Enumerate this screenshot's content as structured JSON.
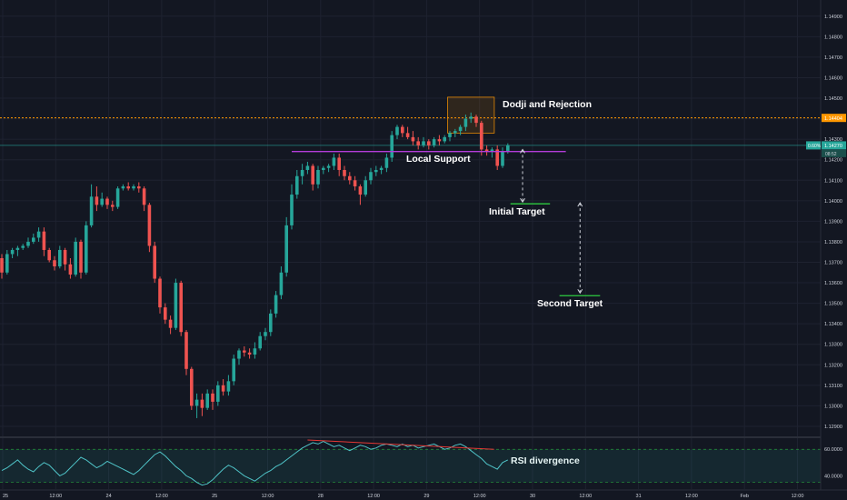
{
  "chart_data": {
    "type": "candlestick",
    "instrument_pane": {
      "y_ticks": [
        "1.14900",
        "1.14800",
        "1.14700",
        "1.14600",
        "1.14500",
        "1.14400",
        "1.14300",
        "1.14200",
        "1.14100",
        "1.14000",
        "1.13900",
        "1.13800",
        "1.13700",
        "1.13600",
        "1.13500",
        "1.13400",
        "1.13300",
        "1.13200",
        "1.13100",
        "1.13000",
        "1.12900"
      ],
      "ylim": [
        1.1286,
        1.1497
      ],
      "price_tags": [
        {
          "label": "1.14404",
          "value": 1.14404,
          "color": "#ff9800"
        },
        {
          "label": "1.14270",
          "value": 1.1427,
          "color": "#26a69a",
          "pct": "0.60%",
          "timer": "08:52"
        }
      ],
      "horizontal_lines": [
        {
          "name": "resistance",
          "value": 1.14404,
          "color": "#ff9800",
          "style": "dotted"
        },
        {
          "name": "last-price",
          "value": 1.1427,
          "color": "#26a69a",
          "style": "solid"
        }
      ],
      "candles": [
        [
          1.1372,
          1.1374,
          1.1362,
          1.1365
        ],
        [
          1.1365,
          1.1376,
          1.1364,
          1.1374
        ],
        [
          1.1374,
          1.1377,
          1.1372,
          1.1376
        ],
        [
          1.1376,
          1.1378,
          1.1373,
          1.1377
        ],
        [
          1.1377,
          1.1379,
          1.1376,
          1.1378
        ],
        [
          1.1378,
          1.1382,
          1.1377,
          1.138
        ],
        [
          1.138,
          1.1384,
          1.1379,
          1.1382
        ],
        [
          1.1382,
          1.1387,
          1.138,
          1.1385
        ],
        [
          1.1385,
          1.1387,
          1.1373,
          1.1376
        ],
        [
          1.1376,
          1.1377,
          1.137,
          1.1371
        ],
        [
          1.1371,
          1.1373,
          1.1366,
          1.1368
        ],
        [
          1.1368,
          1.1378,
          1.1367,
          1.1376
        ],
        [
          1.1376,
          1.1377,
          1.1366,
          1.1369
        ],
        [
          1.1369,
          1.1372,
          1.1362,
          1.1364
        ],
        [
          1.1364,
          1.1382,
          1.1363,
          1.138
        ],
        [
          1.138,
          1.1381,
          1.1362,
          1.1365
        ],
        [
          1.1365,
          1.139,
          1.1364,
          1.1388
        ],
        [
          1.1388,
          1.1408,
          1.1387,
          1.1402
        ],
        [
          1.1402,
          1.1407,
          1.1395,
          1.1398
        ],
        [
          1.1398,
          1.1404,
          1.1397,
          1.1401
        ],
        [
          1.1401,
          1.1402,
          1.1396,
          1.1398
        ],
        [
          1.1398,
          1.14,
          1.1395,
          1.1397
        ],
        [
          1.1397,
          1.1407,
          1.1396,
          1.1406
        ],
        [
          1.1406,
          1.1408,
          1.1405,
          1.1407
        ],
        [
          1.1407,
          1.1409,
          1.1405,
          1.1406
        ],
        [
          1.1406,
          1.1408,
          1.1405,
          1.1407
        ],
        [
          1.1407,
          1.1409,
          1.1404,
          1.1406
        ],
        [
          1.1406,
          1.1407,
          1.1395,
          1.1398
        ],
        [
          1.1398,
          1.1399,
          1.1375,
          1.1378
        ],
        [
          1.1378,
          1.138,
          1.136,
          1.1362
        ],
        [
          1.1362,
          1.1363,
          1.1345,
          1.1348
        ],
        [
          1.1348,
          1.135,
          1.134,
          1.1342
        ],
        [
          1.1342,
          1.1344,
          1.1335,
          1.1338
        ],
        [
          1.1338,
          1.1362,
          1.1337,
          1.136
        ],
        [
          1.136,
          1.1361,
          1.1334,
          1.1336
        ],
        [
          1.1336,
          1.1337,
          1.1315,
          1.1318
        ],
        [
          1.1318,
          1.1319,
          1.1298,
          1.13
        ],
        [
          1.13,
          1.1306,
          1.1294,
          1.1303
        ],
        [
          1.1303,
          1.1306,
          1.1295,
          1.1299
        ],
        [
          1.1299,
          1.1308,
          1.1298,
          1.1306
        ],
        [
          1.1306,
          1.1308,
          1.1298,
          1.1302
        ],
        [
          1.1302,
          1.1312,
          1.13,
          1.131
        ],
        [
          1.131,
          1.1313,
          1.1305,
          1.1307
        ],
        [
          1.1307,
          1.1315,
          1.1305,
          1.1312
        ],
        [
          1.1312,
          1.1325,
          1.131,
          1.1323
        ],
        [
          1.1323,
          1.1328,
          1.132,
          1.1327
        ],
        [
          1.1327,
          1.1329,
          1.1324,
          1.1326
        ],
        [
          1.1326,
          1.1328,
          1.1323,
          1.1325
        ],
        [
          1.1325,
          1.1331,
          1.1323,
          1.1328
        ],
        [
          1.1328,
          1.1336,
          1.1327,
          1.1334
        ],
        [
          1.1334,
          1.1338,
          1.1332,
          1.1336
        ],
        [
          1.1336,
          1.1347,
          1.1334,
          1.1345
        ],
        [
          1.1345,
          1.1356,
          1.1343,
          1.1354
        ],
        [
          1.1354,
          1.1368,
          1.1352,
          1.1365
        ],
        [
          1.1365,
          1.1392,
          1.1363,
          1.1388
        ],
        [
          1.1388,
          1.1408,
          1.1386,
          1.1403
        ],
        [
          1.1403,
          1.1415,
          1.1401,
          1.1412
        ],
        [
          1.1412,
          1.1418,
          1.1408,
          1.1415
        ],
        [
          1.1415,
          1.1419,
          1.1413,
          1.1417
        ],
        [
          1.1417,
          1.1418,
          1.1405,
          1.1408
        ],
        [
          1.1408,
          1.1417,
          1.1406,
          1.1415
        ],
        [
          1.1415,
          1.1417,
          1.1413,
          1.1416
        ],
        [
          1.1416,
          1.1418,
          1.1414,
          1.1417
        ],
        [
          1.1417,
          1.1423,
          1.1415,
          1.1421
        ],
        [
          1.1421,
          1.1423,
          1.1412,
          1.1415
        ],
        [
          1.1415,
          1.1417,
          1.141,
          1.1412
        ],
        [
          1.1412,
          1.1414,
          1.1408,
          1.141
        ],
        [
          1.141,
          1.1412,
          1.1405,
          1.1407
        ],
        [
          1.1407,
          1.1408,
          1.1398,
          1.1403
        ],
        [
          1.1403,
          1.1412,
          1.1402,
          1.141
        ],
        [
          1.141,
          1.1416,
          1.1408,
          1.1414
        ],
        [
          1.1414,
          1.1417,
          1.1412,
          1.1415
        ],
        [
          1.1415,
          1.1417,
          1.1413,
          1.1416
        ],
        [
          1.1416,
          1.1423,
          1.1414,
          1.1421
        ],
        [
          1.1421,
          1.1434,
          1.1419,
          1.1432
        ],
        [
          1.1432,
          1.1437,
          1.143,
          1.1436
        ],
        [
          1.1436,
          1.1437,
          1.1431,
          1.1433
        ],
        [
          1.1433,
          1.1436,
          1.143,
          1.1431
        ],
        [
          1.1431,
          1.1434,
          1.1427,
          1.1429
        ],
        [
          1.1429,
          1.1431,
          1.1425,
          1.1427
        ],
        [
          1.1427,
          1.1431,
          1.1426,
          1.1429
        ],
        [
          1.1429,
          1.143,
          1.1425,
          1.1427
        ],
        [
          1.1427,
          1.1431,
          1.1426,
          1.143
        ],
        [
          1.143,
          1.1432,
          1.1427,
          1.1429
        ],
        [
          1.1429,
          1.1432,
          1.1428,
          1.1431
        ],
        [
          1.1431,
          1.1434,
          1.1429,
          1.1433
        ],
        [
          1.1433,
          1.1435,
          1.1431,
          1.1434
        ],
        [
          1.1434,
          1.1437,
          1.1432,
          1.1436
        ],
        [
          1.1436,
          1.1442,
          1.1434,
          1.144
        ],
        [
          1.144,
          1.1443,
          1.1438,
          1.1441
        ],
        [
          1.1441,
          1.1442,
          1.1436,
          1.1438
        ],
        [
          1.1438,
          1.1439,
          1.1422,
          1.1425
        ],
        [
          1.1425,
          1.1427,
          1.1422,
          1.1424
        ],
        [
          1.1424,
          1.1426,
          1.1421,
          1.1425
        ],
        [
          1.1425,
          1.1427,
          1.1415,
          1.1417
        ],
        [
          1.1417,
          1.1426,
          1.1416,
          1.1424
        ],
        [
          1.1424,
          1.1428,
          1.1423,
          1.1427
        ]
      ]
    },
    "rsi_pane": {
      "y_ticks": [
        "60.0000",
        "40.0000"
      ],
      "ylim": [
        30,
        67
      ],
      "band": [
        35,
        60
      ],
      "values": [
        44,
        46,
        49,
        52,
        48,
        45,
        43,
        47,
        50,
        48,
        44,
        40,
        42,
        46,
        50,
        54,
        52,
        49,
        46,
        48,
        51,
        49,
        47,
        45,
        43,
        41,
        44,
        48,
        52,
        56,
        58,
        55,
        51,
        47,
        44,
        40,
        38,
        35,
        33,
        34,
        37,
        41,
        45,
        48,
        46,
        43,
        40,
        38,
        36,
        39,
        42,
        44,
        47,
        49,
        52,
        55,
        58,
        61,
        63,
        65,
        64,
        66,
        64,
        62,
        63,
        61,
        59,
        61,
        63,
        62,
        60,
        61,
        63,
        64,
        63,
        62,
        64,
        62,
        63,
        61,
        62,
        63,
        64,
        62,
        60,
        61,
        63,
        64,
        62,
        59,
        56,
        53,
        49,
        47,
        45,
        50,
        52
      ],
      "divergence_line": [
        [
          58,
          67
        ],
        [
          92,
          60
        ]
      ]
    },
    "x_ticks": [
      "25",
      "12:00",
      "24",
      "12:00",
      "25",
      "12:00",
      "28",
      "12:00",
      "29",
      "12:00",
      "30",
      "12:00",
      "31",
      "12:00",
      "Feb",
      "12:00"
    ],
    "annotations": {
      "dodji": "Dodji and Rejection",
      "local_support": "Local Support",
      "initial_target": "Initial Target",
      "second_target": "Second Target",
      "rsi_divergence": "RSI divergence"
    },
    "levels": {
      "local_support": 1.1424,
      "initial_target": 1.13985,
      "second_target": 1.13537
    },
    "colors": {
      "background": "#131722",
      "bull": "#26a69a",
      "bear": "#ef5350",
      "support_line": "#b23cd9",
      "resistance_line": "#ff9800",
      "target_line": "#2ecc40",
      "rsi_line": "#4fc3c7",
      "divergence": "#e53935"
    }
  }
}
